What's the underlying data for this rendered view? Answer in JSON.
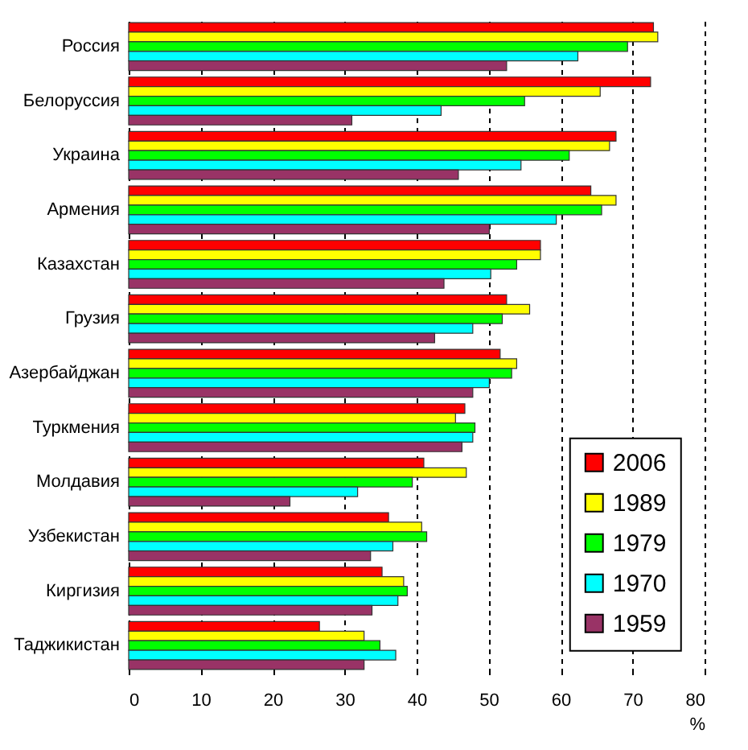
{
  "chart_data": {
    "type": "bar",
    "orientation": "horizontal",
    "xlabel": "%",
    "categories": [
      "Россия",
      "Белоруссия",
      "Украина",
      "Армения",
      "Казахстан",
      "Грузия",
      "Азербайджан",
      "Туркмения",
      "Молдавия",
      "Узбекистан",
      "Киргизия",
      "Таджикистан"
    ],
    "series": [
      {
        "name": "2006",
        "color": "#ff0000",
        "values": [
          72.9,
          72.5,
          67.7,
          64.2,
          57.2,
          52.5,
          51.6,
          46.7,
          41.0,
          36.1,
          35.2,
          26.5
        ]
      },
      {
        "name": "1989",
        "color": "#ffff00",
        "values": [
          73.5,
          65.5,
          66.8,
          67.7,
          57.2,
          55.7,
          53.9,
          45.4,
          46.9,
          40.7,
          38.2,
          32.7
        ]
      },
      {
        "name": "1979",
        "color": "#00ff00",
        "values": [
          69.3,
          55.0,
          61.2,
          65.7,
          53.9,
          51.9,
          53.2,
          48.1,
          39.4,
          41.4,
          38.7,
          34.9
        ]
      },
      {
        "name": "1970",
        "color": "#00ffff",
        "values": [
          62.4,
          43.4,
          54.5,
          59.4,
          50.3,
          47.8,
          50.1,
          47.8,
          31.8,
          36.7,
          37.4,
          37.1
        ]
      },
      {
        "name": "1959",
        "color": "#993366",
        "values": [
          52.5,
          31.0,
          45.8,
          50.1,
          43.8,
          42.5,
          47.8,
          46.3,
          22.4,
          33.6,
          33.8,
          32.7
        ]
      }
    ],
    "xlim": [
      0,
      80
    ],
    "xticks": [
      0,
      10,
      20,
      30,
      40,
      50,
      60,
      70,
      80
    ],
    "grid": "x",
    "legend": "right"
  }
}
